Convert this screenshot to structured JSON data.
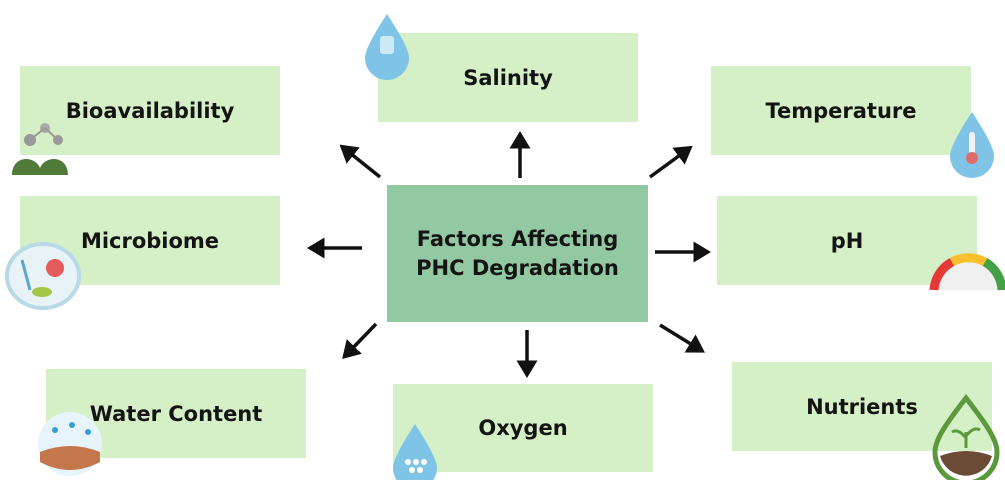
{
  "center": {
    "label": "Factors Affecting PHC Degradation"
  },
  "nodes": [
    {
      "label": "Salinity"
    },
    {
      "label": "Bioavailability"
    },
    {
      "label": "Temperature"
    },
    {
      "label": "Microbiome"
    },
    {
      "label": "pH"
    },
    {
      "label": "Water Content"
    },
    {
      "label": "Oxygen"
    },
    {
      "label": "Nutrients"
    }
  ]
}
